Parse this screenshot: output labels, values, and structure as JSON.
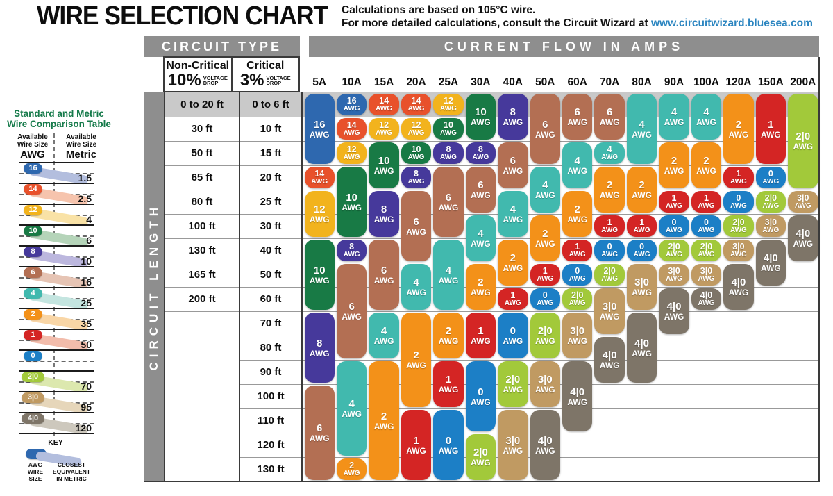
{
  "header": {
    "title": "WIRE SELECTION CHART",
    "subtitle_line1": "Calculations are based on 105°C wire.",
    "subtitle_line2_prefix": "For more detailed calculations, consult the Circuit Wizard at ",
    "subtitle_link": "www.circuitwizard.bluesea.com",
    "link_color": "#2b85c0"
  },
  "chart": {
    "circuit_type_header": "CIRCUIT TYPE",
    "amps_header": "CURRENT FLOW IN AMPS",
    "circuit_length_label": "CIRCUIT LENGTH",
    "non_critical": {
      "title": "Non-Critical",
      "percent": "10%",
      "voltage": "VOLTAGE",
      "drop": "DROP"
    },
    "critical": {
      "title": "Critical",
      "percent": "3%",
      "voltage": "VOLTAGE",
      "drop": "DROP"
    },
    "non_critical_lengths": [
      "0 to 20 ft",
      "30 ft",
      "50 ft",
      "65 ft",
      "80 ft",
      "100 ft",
      "130 ft",
      "165 ft",
      "200 ft"
    ],
    "critical_lengths": [
      "0 to 6 ft",
      "10 ft",
      "15 ft",
      "20 ft",
      "25 ft",
      "30 ft",
      "40 ft",
      "50 ft",
      "60 ft",
      "70 ft",
      "80 ft",
      "90 ft",
      "100 ft",
      "110 ft",
      "120 ft",
      "130 ft"
    ]
  },
  "chart_data": {
    "type": "table",
    "title": "WIRE SELECTION CHART",
    "x_axis": "Current flow in amps",
    "y_axis": "Circuit length (rows pair non-critical 10% drop with critical 3% drop lengths)",
    "row_count": 16,
    "cell_unit": "AWG wire size",
    "columns": [
      {
        "amps": "5A",
        "pills": [
          {
            "awg": "16",
            "span": [
              1,
              3
            ]
          },
          {
            "awg": "14",
            "span": [
              4,
              4
            ]
          },
          {
            "awg": "12",
            "span": [
              5,
              6
            ]
          },
          {
            "awg": "10",
            "span": [
              7,
              9
            ]
          },
          {
            "awg": "8",
            "span": [
              10,
              12
            ]
          },
          {
            "awg": "6",
            "span": [
              13,
              16
            ]
          }
        ]
      },
      {
        "amps": "10A",
        "pills": [
          {
            "awg": "16",
            "span": [
              1,
              1
            ]
          },
          {
            "awg": "14",
            "span": [
              2,
              2
            ]
          },
          {
            "awg": "12",
            "span": [
              3,
              3
            ]
          },
          {
            "awg": "10",
            "span": [
              4,
              6
            ]
          },
          {
            "awg": "8",
            "span": [
              7,
              7
            ]
          },
          {
            "awg": "6",
            "span": [
              8,
              11
            ]
          },
          {
            "awg": "4",
            "span": [
              12,
              15
            ]
          },
          {
            "awg": "2",
            "span": [
              16,
              16
            ]
          }
        ]
      },
      {
        "amps": "15A",
        "pills": [
          {
            "awg": "14",
            "span": [
              1,
              1
            ]
          },
          {
            "awg": "12",
            "span": [
              2,
              2
            ]
          },
          {
            "awg": "10",
            "span": [
              3,
              4
            ]
          },
          {
            "awg": "8",
            "span": [
              5,
              6
            ]
          },
          {
            "awg": "6",
            "span": [
              7,
              9
            ]
          },
          {
            "awg": "4",
            "span": [
              10,
              11
            ]
          },
          {
            "awg": "2",
            "span": [
              12,
              16
            ]
          }
        ]
      },
      {
        "amps": "20A",
        "pills": [
          {
            "awg": "14",
            "span": [
              1,
              1
            ]
          },
          {
            "awg": "12",
            "span": [
              2,
              2
            ]
          },
          {
            "awg": "10",
            "span": [
              3,
              3
            ]
          },
          {
            "awg": "8",
            "span": [
              4,
              4
            ]
          },
          {
            "awg": "6",
            "span": [
              5,
              7
            ]
          },
          {
            "awg": "4",
            "span": [
              8,
              9
            ]
          },
          {
            "awg": "2",
            "span": [
              10,
              13
            ]
          },
          {
            "awg": "1",
            "span": [
              14,
              16
            ]
          }
        ]
      },
      {
        "amps": "25A",
        "pills": [
          {
            "awg": "12",
            "span": [
              1,
              1
            ]
          },
          {
            "awg": "10",
            "span": [
              2,
              2
            ]
          },
          {
            "awg": "8",
            "span": [
              3,
              3
            ]
          },
          {
            "awg": "6",
            "span": [
              4,
              6
            ]
          },
          {
            "awg": "4",
            "span": [
              7,
              9
            ]
          },
          {
            "awg": "2",
            "span": [
              10,
              11
            ]
          },
          {
            "awg": "1",
            "span": [
              12,
              13
            ]
          },
          {
            "awg": "0",
            "span": [
              14,
              16
            ]
          }
        ]
      },
      {
        "amps": "30A",
        "pills": [
          {
            "awg": "10",
            "span": [
              1,
              2
            ]
          },
          {
            "awg": "8",
            "span": [
              3,
              3
            ]
          },
          {
            "awg": "6",
            "span": [
              4,
              5
            ]
          },
          {
            "awg": "4",
            "span": [
              6,
              7
            ]
          },
          {
            "awg": "2",
            "span": [
              8,
              9
            ]
          },
          {
            "awg": "1",
            "span": [
              10,
              11
            ]
          },
          {
            "awg": "0",
            "span": [
              12,
              14
            ]
          },
          {
            "awg": "2|0",
            "span": [
              15,
              16
            ]
          }
        ]
      },
      {
        "amps": "40A",
        "pills": [
          {
            "awg": "8",
            "span": [
              1,
              2
            ]
          },
          {
            "awg": "6",
            "span": [
              3,
              4
            ]
          },
          {
            "awg": "4",
            "span": [
              5,
              6
            ]
          },
          {
            "awg": "2",
            "span": [
              7,
              8
            ]
          },
          {
            "awg": "1",
            "span": [
              9,
              9
            ]
          },
          {
            "awg": "0",
            "span": [
              10,
              11
            ]
          },
          {
            "awg": "2|0",
            "span": [
              12,
              13
            ]
          },
          {
            "awg": "3|0",
            "span": [
              14,
              16
            ]
          }
        ]
      },
      {
        "amps": "50A",
        "pills": [
          {
            "awg": "6",
            "span": [
              1,
              3
            ]
          },
          {
            "awg": "4",
            "span": [
              4,
              5
            ]
          },
          {
            "awg": "2",
            "span": [
              6,
              7
            ]
          },
          {
            "awg": "1",
            "span": [
              8,
              8
            ]
          },
          {
            "awg": "0",
            "span": [
              9,
              9
            ]
          },
          {
            "awg": "2|0",
            "span": [
              10,
              11
            ]
          },
          {
            "awg": "3|0",
            "span": [
              12,
              13
            ]
          },
          {
            "awg": "4|0",
            "span": [
              14,
              16
            ]
          }
        ]
      },
      {
        "amps": "60A",
        "pills": [
          {
            "awg": "6",
            "span": [
              1,
              2
            ]
          },
          {
            "awg": "4",
            "span": [
              3,
              4
            ]
          },
          {
            "awg": "2",
            "span": [
              5,
              6
            ]
          },
          {
            "awg": "1",
            "span": [
              7,
              7
            ]
          },
          {
            "awg": "0",
            "span": [
              8,
              8
            ]
          },
          {
            "awg": "2|0",
            "span": [
              9,
              9
            ]
          },
          {
            "awg": "3|0",
            "span": [
              10,
              11
            ]
          },
          {
            "awg": "4|0",
            "span": [
              12,
              14
            ]
          }
        ]
      },
      {
        "amps": "70A",
        "pills": [
          {
            "awg": "6",
            "span": [
              1,
              2
            ]
          },
          {
            "awg": "4",
            "span": [
              3,
              3
            ]
          },
          {
            "awg": "2",
            "span": [
              4,
              5
            ]
          },
          {
            "awg": "1",
            "span": [
              6,
              6
            ]
          },
          {
            "awg": "0",
            "span": [
              7,
              7
            ]
          },
          {
            "awg": "2|0",
            "span": [
              8,
              8
            ]
          },
          {
            "awg": "3|0",
            "span": [
              9,
              10
            ]
          },
          {
            "awg": "4|0",
            "span": [
              11,
              12
            ]
          }
        ]
      },
      {
        "amps": "80A",
        "pills": [
          {
            "awg": "4",
            "span": [
              1,
              3
            ]
          },
          {
            "awg": "2",
            "span": [
              4,
              5
            ]
          },
          {
            "awg": "1",
            "span": [
              6,
              6
            ]
          },
          {
            "awg": "0",
            "span": [
              7,
              7
            ]
          },
          {
            "awg": "3|0",
            "span": [
              8,
              9
            ]
          },
          {
            "awg": "4|0",
            "span": [
              10,
              12
            ]
          }
        ]
      },
      {
        "amps": "90A",
        "pills": [
          {
            "awg": "4",
            "span": [
              1,
              2
            ]
          },
          {
            "awg": "2",
            "span": [
              3,
              4
            ]
          },
          {
            "awg": "1",
            "span": [
              5,
              5
            ]
          },
          {
            "awg": "0",
            "span": [
              6,
              6
            ]
          },
          {
            "awg": "2|0",
            "span": [
              7,
              7
            ]
          },
          {
            "awg": "3|0",
            "span": [
              8,
              8
            ]
          },
          {
            "awg": "4|0",
            "span": [
              9,
              10
            ]
          }
        ]
      },
      {
        "amps": "100A",
        "pills": [
          {
            "awg": "4",
            "span": [
              1,
              2
            ]
          },
          {
            "awg": "2",
            "span": [
              3,
              4
            ]
          },
          {
            "awg": "1",
            "span": [
              5,
              5
            ]
          },
          {
            "awg": "0",
            "span": [
              6,
              6
            ]
          },
          {
            "awg": "2|0",
            "span": [
              7,
              7
            ]
          },
          {
            "awg": "3|0",
            "span": [
              8,
              8
            ]
          },
          {
            "awg": "4|0",
            "span": [
              9,
              9
            ]
          }
        ]
      },
      {
        "amps": "120A",
        "pills": [
          {
            "awg": "2",
            "span": [
              1,
              3
            ]
          },
          {
            "awg": "1",
            "span": [
              4,
              4
            ]
          },
          {
            "awg": "0",
            "span": [
              5,
              5
            ]
          },
          {
            "awg": "2|0",
            "span": [
              6,
              6
            ]
          },
          {
            "awg": "3|0",
            "span": [
              7,
              7
            ]
          },
          {
            "awg": "4|0",
            "span": [
              8,
              9
            ]
          }
        ]
      },
      {
        "amps": "150A",
        "pills": [
          {
            "awg": "1",
            "span": [
              1,
              3
            ]
          },
          {
            "awg": "0",
            "span": [
              4,
              4
            ]
          },
          {
            "awg": "2|0",
            "span": [
              5,
              5
            ]
          },
          {
            "awg": "3|0",
            "span": [
              6,
              6
            ]
          },
          {
            "awg": "4|0",
            "span": [
              7,
              8
            ]
          }
        ]
      },
      {
        "amps": "200A",
        "pills": [
          {
            "awg": "2|0",
            "span": [
              1,
              4
            ]
          },
          {
            "awg": "3|0",
            "span": [
              5,
              5
            ]
          },
          {
            "awg": "4|0",
            "span": [
              6,
              7
            ]
          }
        ]
      }
    ]
  },
  "comparison_table": {
    "title_line1": "Standard and Metric",
    "title_line2": "Wire Comparison Table",
    "awg_header": {
      "line1": "Available",
      "line2": "Wire Size",
      "unit": "AWG"
    },
    "metric_header": {
      "line1": "Available",
      "line2": "Wire Size",
      "unit": "Metric"
    },
    "rows": [
      {
        "awg": "16",
        "metric": "1.5"
      },
      {
        "awg": "14",
        "metric": "2.5"
      },
      {
        "awg": "12",
        "metric": "4"
      },
      {
        "awg": "10",
        "metric": "6"
      },
      {
        "awg": "8",
        "metric": "10"
      },
      {
        "awg": "6",
        "metric": "16"
      },
      {
        "awg": "4",
        "metric": "25"
      },
      {
        "awg": "2",
        "metric": "35"
      },
      {
        "awg": "1",
        "metric": "50"
      },
      {
        "awg": "0",
        "metric": ""
      },
      {
        "awg": "2|0",
        "metric": "70"
      },
      {
        "awg": "3|0",
        "metric": "95"
      },
      {
        "awg": "4|0",
        "metric": "120"
      }
    ],
    "key": {
      "title": "KEY",
      "awg_label": {
        "line1": "AWG",
        "line2": "WIRE",
        "line3": "SIZE"
      },
      "metric_label": {
        "line1": "CLOSEST",
        "line2": "EQUIVALENT",
        "line3": "IN METRIC"
      }
    }
  },
  "colors": {
    "16": "#2e68af",
    "14": "#e8512b",
    "12": "#f2b31d",
    "10": "#187a45",
    "8": "#46399b",
    "6": "#b36f53",
    "4": "#41b9ae",
    "2": "#f39119",
    "1": "#d42524",
    "0": "#1c7fc6",
    "2|0": "#a2c93a",
    "3|0": "#c09a62",
    "4|0": "#7e7568"
  },
  "tints": {
    "16": "#b3bede",
    "14": "#f6c4ad",
    "12": "#f9e2a6",
    "10": "#b5d4b9",
    "8": "#bcb7de",
    "6": "#e6c4b4",
    "4": "#c4e5e0",
    "2": "#f9d6a6",
    "1": "#f2bcab",
    "0": "#b3bede",
    "2|0": "#dce8ae",
    "3|0": "#e6d6ba",
    "4|0": "#cdc8bd"
  }
}
